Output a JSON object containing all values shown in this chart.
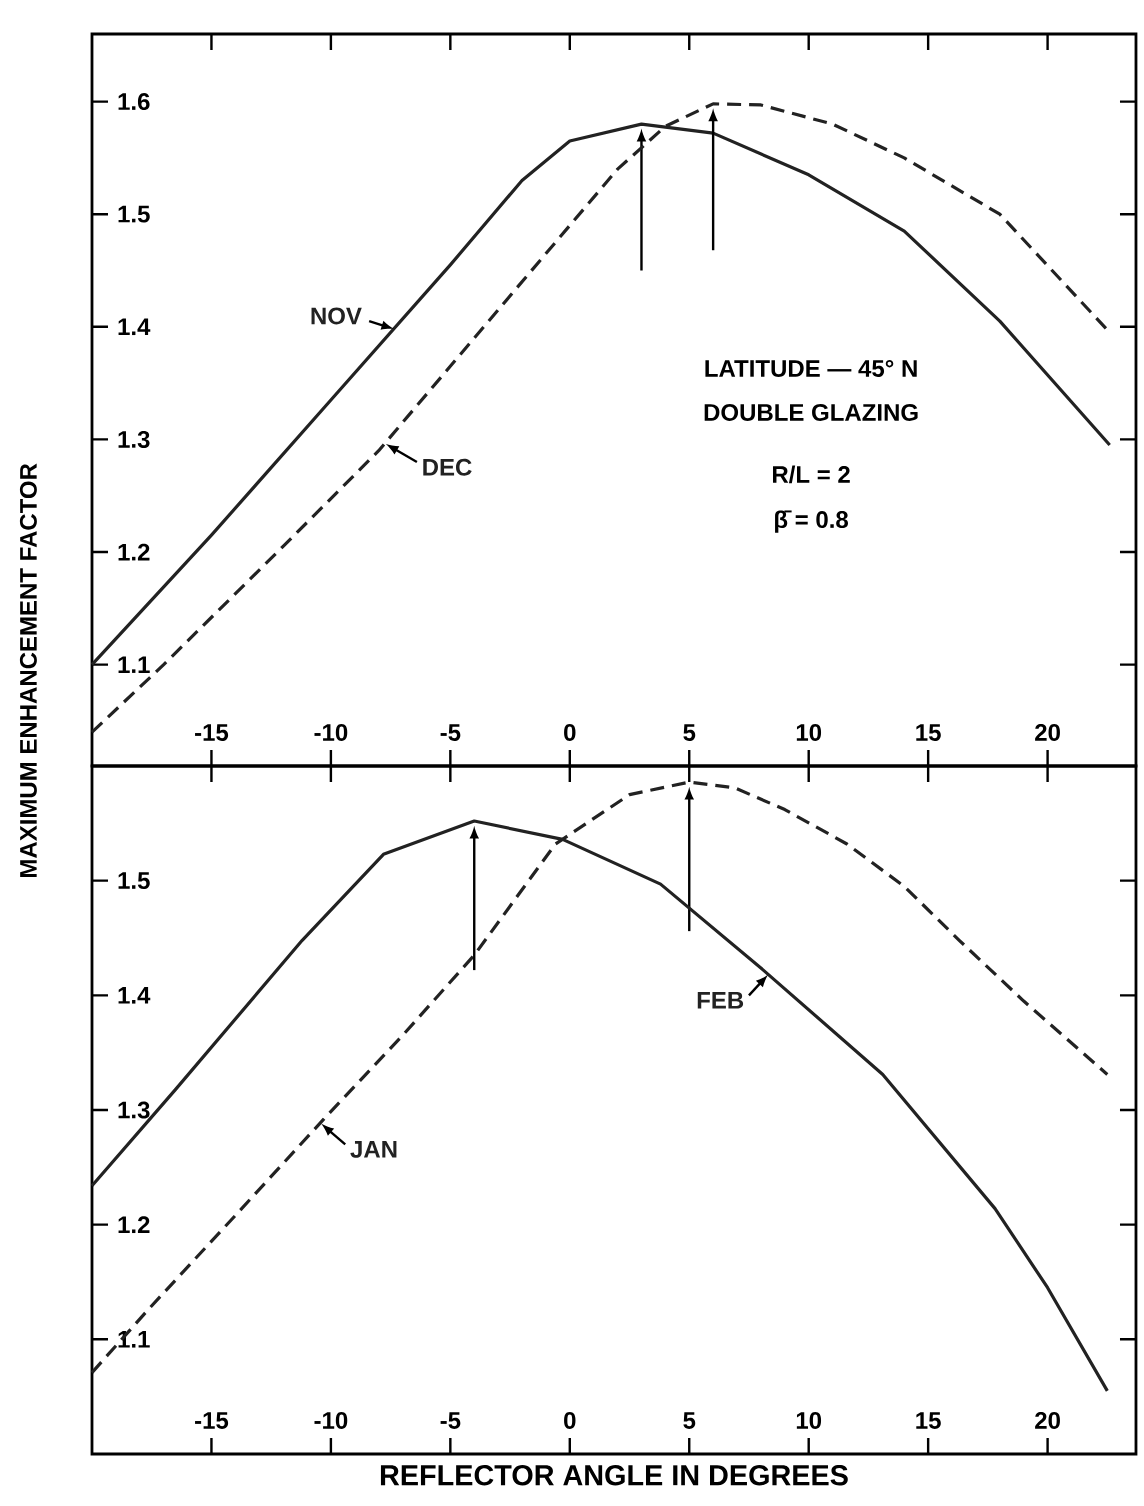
{
  "chart_data": [
    {
      "type": "line",
      "ylabel": "MAXIMUM ENHANCEMENT FACTOR",
      "xlim": [
        -20,
        23.7
      ],
      "ylim": [
        1.01,
        1.66
      ],
      "xticks": [
        -15,
        -10,
        -5,
        0,
        5,
        10,
        15,
        20
      ],
      "yticks": [
        {
          "value": 1.1,
          "label": "1.1"
        },
        {
          "value": 1.2,
          "label": "1.2"
        },
        {
          "value": 1.3,
          "label": "1.3"
        },
        {
          "value": 1.4,
          "label": "1.4"
        },
        {
          "value": 1.5,
          "label": "1.5"
        },
        {
          "value": 1.6,
          "label": "1.6"
        }
      ],
      "grid": false,
      "legend": false,
      "marker": "none",
      "annotations": [
        "LATITUDE — 45° N",
        "DOUBLE GLAZING",
        "R/L = 2",
        "β̄ = 0.8"
      ],
      "series": [
        {
          "name": "NOV",
          "color": "#222222",
          "line_style": "solid",
          "x": [
            -20,
            -15,
            -10,
            -5,
            -2,
            0,
            3,
            6,
            10,
            14,
            18,
            22.6
          ],
          "values": [
            1.1,
            1.215,
            1.335,
            1.455,
            1.53,
            1.565,
            1.58,
            1.572,
            1.535,
            1.485,
            1.405,
            1.295
          ]
        },
        {
          "name": "DEC",
          "color": "#222222",
          "line_style": "dashed",
          "x": [
            -20,
            -17,
            -12,
            -8,
            -4,
            0,
            2,
            4,
            6,
            8,
            11,
            14,
            18,
            22.6
          ],
          "values": [
            1.04,
            1.1,
            1.205,
            1.29,
            1.39,
            1.49,
            1.54,
            1.578,
            1.598,
            1.597,
            1.58,
            1.55,
            1.5,
            1.395
          ]
        }
      ]
    },
    {
      "type": "line",
      "xlabel": "REFLECTOR ANGLE IN DEGREES",
      "xlim": [
        -20,
        23.7
      ],
      "ylim": [
        1.0,
        1.6
      ],
      "xticks": [
        -15,
        -10,
        -5,
        0,
        5,
        10,
        15,
        20
      ],
      "yticks": [
        {
          "value": 1.1,
          "label": "1.1"
        },
        {
          "value": 1.2,
          "label": "1.2"
        },
        {
          "value": 1.3,
          "label": "1.3"
        },
        {
          "value": 1.4,
          "label": "1.4"
        },
        {
          "value": 1.5,
          "label": "1.5"
        }
      ],
      "grid": false,
      "legend": false,
      "marker": "none",
      "series": [
        {
          "name": "JAN",
          "color": "#222222",
          "line_style": "dashed",
          "x": [
            -20,
            -17.6,
            -14,
            -10.3,
            -7,
            -4,
            -0.6,
            2.5,
            5,
            6.9,
            9,
            11.6,
            14,
            16.3,
            19,
            22.5
          ],
          "values": [
            1.071,
            1.127,
            1.208,
            1.292,
            1.365,
            1.435,
            1.532,
            1.575,
            1.586,
            1.581,
            1.562,
            1.532,
            1.495,
            1.448,
            1.395,
            1.331
          ]
        },
        {
          "name": "FEB",
          "color": "#222222",
          "line_style": "solid",
          "x": [
            -20,
            -16.5,
            -11.2,
            -7.8,
            -4,
            -0.3,
            3.8,
            8.1,
            13.1,
            17.8,
            20,
            22.5
          ],
          "values": [
            1.234,
            1.318,
            1.448,
            1.523,
            1.552,
            1.536,
            1.497,
            1.422,
            1.331,
            1.214,
            1.145,
            1.055
          ]
        }
      ]
    }
  ]
}
